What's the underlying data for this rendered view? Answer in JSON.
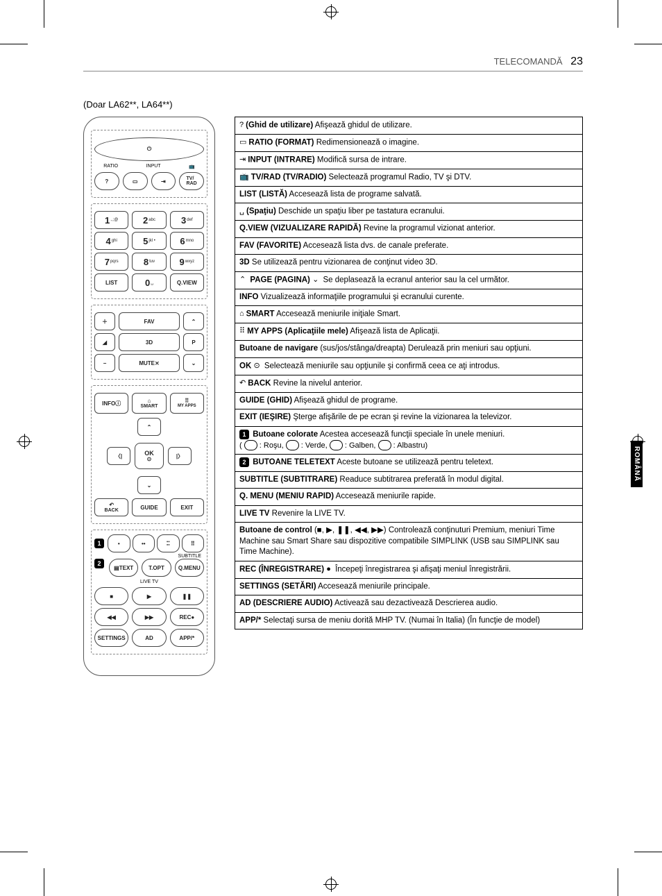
{
  "header": {
    "section": "TELECOMANDĂ",
    "page": "23"
  },
  "subtitle": "(Doar LA62**, LA64**)",
  "side_tab": "ROMÂNĂ",
  "remote": {
    "top_labels": {
      "ratio": "RATIO",
      "input": "INPUT",
      "tvrad": "TV/\nRAD"
    },
    "numpad": [
      {
        "n": "1",
        "s": ".,;@"
      },
      {
        "n": "2",
        "s": "abc"
      },
      {
        "n": "3",
        "s": "def"
      },
      {
        "n": "4",
        "s": "ghi"
      },
      {
        "n": "5",
        "s": "jkl •"
      },
      {
        "n": "6",
        "s": "mno"
      },
      {
        "n": "7",
        "s": "pqrs"
      },
      {
        "n": "8",
        "s": "tuv"
      },
      {
        "n": "9",
        "s": "wxyz"
      }
    ],
    "list": "LIST",
    "zero": "0",
    "qview": "Q.VIEW",
    "fav": "FAV",
    "threeD": "3D",
    "p": "P",
    "mute": "MUTE",
    "info": "INFO",
    "smart": "SMART",
    "myapps": "MY APPS",
    "ok": "OK",
    "back": "BACK",
    "guide": "GUIDE",
    "exit": "EXIT",
    "text": "TEXT",
    "topt": "T.OPT",
    "qmenu": "Q.MENU",
    "subtitle": "SUBTITLE",
    "livetv": "LIVE TV",
    "rec": "REC",
    "settings": "SETTINGS",
    "ad": "AD",
    "app": "APP/*"
  },
  "desc": [
    {
      "icon": "?",
      "bold": "(Ghid de utilizare)",
      "text": " Afişează ghidul de utilizare."
    },
    {
      "icon": "▭",
      "bold": "RATIO (FORMAT)",
      "text": " Redimensionează o imagine."
    },
    {
      "icon": "⇥",
      "bold": "INPUT (INTRARE)",
      "text": " Modifică sursa de intrare."
    },
    {
      "icon": "📺",
      "bold": "TV/RAD (TV/RADIO)",
      "text": " Selectează programul Radio, TV şi DTV."
    },
    {
      "bold": "LIST (LISTĂ)",
      "text": " Accesează lista de programe salvată."
    },
    {
      "icon": "␣",
      "bold": "(Spaţiu)",
      "text": " Deschide un spaţiu liber pe tastatura ecranului."
    },
    {
      "bold": "Q.VIEW (VIZUALIZARE RAPIDĂ)",
      "text": " Revine la programul vizionat anterior."
    },
    {
      "bold": "FAV (FAVORITE)",
      "text": " Accesează lista dvs. de canale preferate."
    },
    {
      "bold": "3D",
      "text": " Se utilizează pentru vizionarea de conţinut video 3D."
    },
    {
      "icon": "⌃",
      "bold": "PAGE (PAGINA)",
      "icon2": "⌄",
      "text": " Se deplasează la ecranul anterior sau la cel următor."
    },
    {
      "bold": "INFO",
      "text": " Vizualizează informaţiile programului şi ecranului curente."
    },
    {
      "icon": "⌂",
      "bold": "SMART",
      "text": " Accesează meniurile iniţiale Smart."
    },
    {
      "icon": "⠿",
      "bold": "MY APPS (Aplicaţiile mele)",
      "text": " Afişează lista de Aplicaţii."
    },
    {
      "bold": "Butoane de navigare",
      "text": " (sus/jos/stânga/dreapta) Derulează prin meniuri sau opţiuni."
    },
    {
      "bold": "OK",
      "icon": "⊙",
      "text": " Selectează meniurile sau opţiunile şi confirmă ceea ce aţi introdus."
    },
    {
      "icon": "↶",
      "bold": "BACK",
      "text": " Revine la nivelul anterior."
    },
    {
      "bold": "GUIDE (GHID)",
      "text": " Afişează ghidul de programe."
    },
    {
      "bold": "EXIT (IEŞIRE)",
      "text": " Şterge afişările de pe ecran şi revine la vizionarea la televizor."
    },
    {
      "badge": "1",
      "bold": "Butoane colorate",
      "text": " Acestea accesează funcţii speciale în unele meniuri.",
      "extra": "( ⬭ : Roşu, ⬭ : Verde, ⬭ : Galben, ⬭ : Albastru)"
    },
    {
      "badge": "2",
      "bold": "BUTOANE TELETEXT",
      "text": " Aceste butoane se utilizează pentru teletext."
    },
    {
      "bold": "SUBTITLE (SUBTITRARE)",
      "text": " Readuce subtitrarea preferată în modul digital."
    },
    {
      "bold": "Q. MENU (MENIU RAPID)",
      "text": " Accesează meniurile rapide."
    },
    {
      "bold": "LIVE TV",
      "text": " Revenire la LIVE TV."
    },
    {
      "bold": "Butoane de control",
      "text": " (■, ▶, ❚❚, ◀◀, ▶▶) Controlează conţinuturi Premium, meniuri Time Machine sau Smart Share sau dispozitive compatibile SIMPLINK (USB sau SIMPLINK sau Time Machine)."
    },
    {
      "bold": "REC (ÎNREGISTRARE)",
      "icon": "●",
      "text": " Începeţi înregistrarea şi afişaţi meniul înregistrării."
    },
    {
      "bold": "SETTINGS (SETĂRI)",
      "text": " Accesează meniurile principale."
    },
    {
      "bold": "AD (DESCRIERE AUDIO)",
      "text": " Activează sau dezactivează Descrierea audio."
    },
    {
      "bold": "APP/*",
      "text": " Selectaţi sursa de meniu dorită MHP TV. (Numai în Italia) (În funcţie de model)"
    }
  ]
}
